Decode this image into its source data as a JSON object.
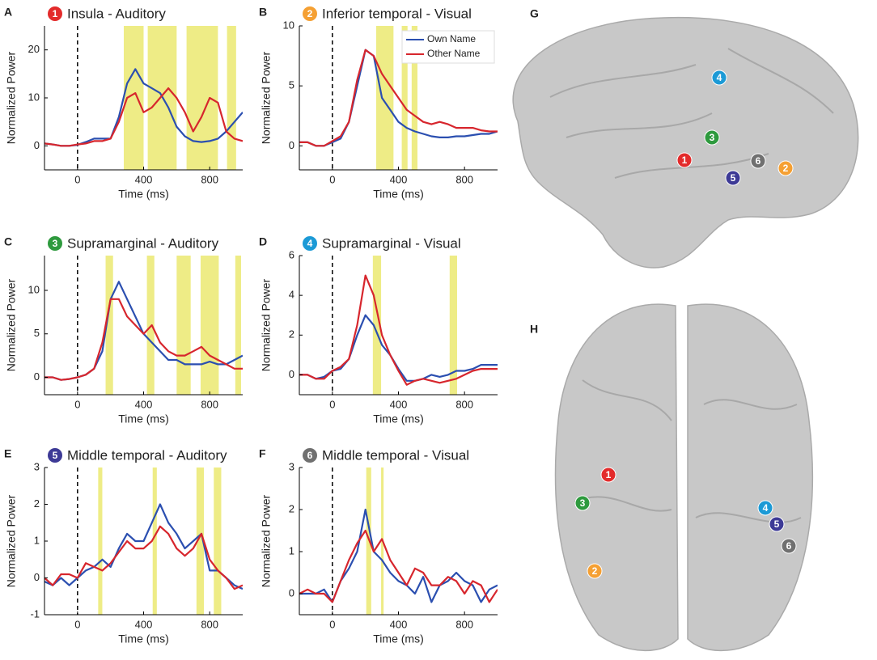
{
  "chart_data": [
    {
      "type": "line",
      "panel": "A",
      "badge": "1",
      "badge_color": "#e32b2b",
      "title": "Insula - Auditory",
      "xlabel": "Time (ms)",
      "ylabel": "Normalized Power",
      "x": [
        -200,
        -150,
        -100,
        -50,
        0,
        50,
        100,
        150,
        200,
        250,
        300,
        350,
        400,
        450,
        500,
        550,
        600,
        650,
        700,
        750,
        800,
        850,
        900,
        950,
        1000
      ],
      "xlim": [
        -200,
        1000
      ],
      "xticks": [
        0,
        400,
        800
      ],
      "ylim": [
        -5,
        25
      ],
      "yticks": [
        0,
        10,
        20
      ],
      "onset": 0,
      "highlights": [
        [
          280,
          400
        ],
        [
          425,
          600
        ],
        [
          660,
          850
        ],
        [
          905,
          960
        ]
      ],
      "highlight_color": "#eeec86",
      "series": [
        {
          "color": "#2b4fb0",
          "values": [
            0.5,
            0.3,
            0,
            0,
            0.2,
            0.8,
            1.5,
            1.5,
            1.5,
            6,
            13,
            16,
            13,
            12,
            11,
            8,
            4,
            2,
            1,
            0.8,
            1,
            1.5,
            3,
            5,
            7
          ]
        },
        {
          "color": "#d7262d",
          "values": [
            0.5,
            0.3,
            0,
            0,
            0.3,
            0.5,
            1,
            1,
            1.5,
            5,
            10,
            11,
            7,
            8,
            10,
            12,
            10,
            7,
            3,
            6,
            10,
            9,
            3,
            1.5,
            1
          ]
        }
      ]
    },
    {
      "type": "line",
      "panel": "B",
      "badge": "2",
      "badge_color": "#f5a033",
      "title": "Inferior temporal - Visual",
      "xlabel": "Time (ms)",
      "ylabel": "Normalized Power",
      "x": [
        -200,
        -150,
        -100,
        -50,
        0,
        50,
        100,
        150,
        200,
        250,
        300,
        350,
        400,
        450,
        500,
        550,
        600,
        650,
        700,
        750,
        800,
        850,
        900,
        950,
        1000
      ],
      "xlim": [
        -200,
        1000
      ],
      "xticks": [
        0,
        400,
        800
      ],
      "ylim": [
        -2,
        10
      ],
      "yticks": [
        0,
        5,
        10
      ],
      "onset": 0,
      "highlights": [
        [
          265,
          370
        ],
        [
          420,
          455
        ],
        [
          480,
          515
        ]
      ],
      "highlight_color": "#eeec86",
      "legend": "upper right",
      "series": [
        {
          "name": "Own Name",
          "color": "#2b4fb0",
          "values": [
            0.3,
            0.3,
            0,
            0,
            0.3,
            0.6,
            2,
            5,
            8,
            7.5,
            4,
            3,
            2,
            1.5,
            1.2,
            1,
            0.8,
            0.7,
            0.7,
            0.8,
            0.8,
            0.9,
            1,
            1,
            1.2
          ]
        },
        {
          "name": "Other Name",
          "color": "#d7262d",
          "values": [
            0.3,
            0.3,
            0,
            0,
            0.4,
            0.8,
            2,
            5.5,
            8,
            7.5,
            6,
            5,
            4,
            3,
            2.5,
            2,
            1.8,
            2,
            1.8,
            1.5,
            1.5,
            1.5,
            1.3,
            1.2,
            1.2
          ]
        }
      ]
    },
    {
      "type": "line",
      "panel": "C",
      "badge": "3",
      "badge_color": "#2e9a3e",
      "title": "Supramarginal - Auditory",
      "xlabel": "Time (ms)",
      "ylabel": "Normalized Power",
      "x": [
        -200,
        -150,
        -100,
        -50,
        0,
        50,
        100,
        150,
        200,
        250,
        300,
        350,
        400,
        450,
        500,
        550,
        600,
        650,
        700,
        750,
        800,
        850,
        900,
        950,
        1000
      ],
      "xlim": [
        -200,
        1000
      ],
      "xticks": [
        0,
        400,
        800
      ],
      "ylim": [
        -2,
        14
      ],
      "yticks": [
        0,
        5,
        10
      ],
      "onset": 0,
      "highlights": [
        [
          170,
          215
        ],
        [
          420,
          465
        ],
        [
          600,
          685
        ],
        [
          745,
          855
        ],
        [
          955,
          990
        ]
      ],
      "highlight_color": "#eeec86",
      "series": [
        {
          "color": "#2b4fb0",
          "values": [
            0,
            0,
            -0.3,
            -0.2,
            0,
            0.3,
            1,
            3,
            9,
            11,
            9,
            7,
            5,
            4,
            3,
            2,
            2,
            1.5,
            1.5,
            1.5,
            1.8,
            1.5,
            1.5,
            2,
            2.5
          ]
        },
        {
          "color": "#d7262d",
          "values": [
            0,
            0,
            -0.3,
            -0.2,
            0,
            0.3,
            1,
            4,
            9,
            9,
            7,
            6,
            5,
            6,
            4,
            3,
            2.5,
            2.5,
            3,
            3.5,
            2.5,
            2,
            1.5,
            1,
            1
          ]
        }
      ]
    },
    {
      "type": "line",
      "panel": "D",
      "badge": "4",
      "badge_color": "#1c9ad6",
      "title": "Supramarginal - Visual",
      "xlabel": "Time (ms)",
      "ylabel": "Normalized Power",
      "x": [
        -200,
        -150,
        -100,
        -50,
        0,
        50,
        100,
        150,
        200,
        250,
        300,
        350,
        400,
        450,
        500,
        550,
        600,
        650,
        700,
        750,
        800,
        850,
        900,
        950,
        1000
      ],
      "xlim": [
        -200,
        1000
      ],
      "xticks": [
        0,
        400,
        800
      ],
      "ylim": [
        -1,
        6
      ],
      "yticks": [
        0,
        2,
        4,
        6
      ],
      "onset": 0,
      "highlights": [
        [
          245,
          295
        ],
        [
          710,
          755
        ]
      ],
      "highlight_color": "#eeec86",
      "series": [
        {
          "color": "#2b4fb0",
          "values": [
            0,
            0,
            -0.2,
            -0.1,
            0.2,
            0.3,
            0.8,
            2,
            3,
            2.5,
            1.5,
            1,
            0.3,
            -0.3,
            -0.3,
            -0.2,
            0,
            -0.1,
            0,
            0.2,
            0.2,
            0.3,
            0.5,
            0.5,
            0.5
          ]
        },
        {
          "color": "#d7262d",
          "values": [
            0,
            0,
            -0.2,
            -0.2,
            0.2,
            0.4,
            0.8,
            2.5,
            5,
            4,
            2,
            1,
            0.2,
            -0.5,
            -0.3,
            -0.2,
            -0.3,
            -0.4,
            -0.3,
            -0.2,
            0,
            0.2,
            0.3,
            0.3,
            0.3
          ]
        }
      ]
    },
    {
      "type": "line",
      "panel": "E",
      "badge": "5",
      "badge_color": "#3d3a96",
      "title": "Middle temporal - Auditory",
      "xlabel": "Time (ms)",
      "ylabel": "Normalized Power",
      "x": [
        -200,
        -150,
        -100,
        -50,
        0,
        50,
        100,
        150,
        200,
        250,
        300,
        350,
        400,
        450,
        500,
        550,
        600,
        650,
        700,
        750,
        800,
        850,
        900,
        950,
        1000
      ],
      "xlim": [
        -200,
        1000
      ],
      "xticks": [
        0,
        400,
        800
      ],
      "ylim": [
        -1,
        3
      ],
      "yticks": [
        -1,
        0,
        1,
        2,
        3
      ],
      "onset": 0,
      "highlights": [
        [
          125,
          150
        ],
        [
          455,
          480
        ],
        [
          720,
          765
        ],
        [
          825,
          870
        ]
      ],
      "highlight_color": "#eeec86",
      "series": [
        {
          "color": "#2b4fb0",
          "values": [
            -0.1,
            -0.2,
            0,
            -0.2,
            0,
            0.2,
            0.3,
            0.5,
            0.3,
            0.8,
            1.2,
            1,
            1,
            1.5,
            2,
            1.5,
            1.2,
            0.8,
            1,
            1.2,
            0.2,
            0.2,
            0,
            -0.2,
            -0.3
          ]
        },
        {
          "color": "#d7262d",
          "values": [
            0,
            -0.2,
            0.1,
            0.1,
            0,
            0.4,
            0.3,
            0.2,
            0.4,
            0.7,
            1,
            0.8,
            0.8,
            1,
            1.4,
            1.2,
            0.8,
            0.6,
            0.8,
            1.2,
            0.5,
            0.2,
            0,
            -0.3,
            -0.2
          ]
        }
      ]
    },
    {
      "type": "line",
      "panel": "F",
      "badge": "6",
      "badge_color": "#707070",
      "title": "Middle temporal - Visual",
      "xlabel": "Time (ms)",
      "ylabel": "Normalized Power",
      "x": [
        -200,
        -150,
        -100,
        -50,
        0,
        50,
        100,
        150,
        200,
        250,
        300,
        350,
        400,
        450,
        500,
        550,
        600,
        650,
        700,
        750,
        800,
        850,
        900,
        950,
        1000
      ],
      "xlim": [
        -200,
        1000
      ],
      "xticks": [
        0,
        400,
        800
      ],
      "ylim": [
        -0.5,
        3
      ],
      "yticks": [
        0,
        1,
        2,
        3
      ],
      "onset": 0,
      "highlights": [
        [
          205,
          235
        ],
        [
          295,
          310
        ]
      ],
      "highlight_color": "#eeec86",
      "series": [
        {
          "color": "#2b4fb0",
          "values": [
            0,
            0,
            0,
            0.1,
            -0.2,
            0.3,
            0.6,
            1,
            2,
            1,
            0.8,
            0.5,
            0.3,
            0.2,
            0,
            0.4,
            -0.2,
            0.2,
            0.3,
            0.5,
            0.3,
            0.2,
            -0.2,
            0.1,
            0.2
          ]
        },
        {
          "color": "#d7262d",
          "values": [
            0,
            0.1,
            0,
            0,
            -0.2,
            0.3,
            0.8,
            1.2,
            1.5,
            1,
            1.3,
            0.8,
            0.5,
            0.2,
            0.6,
            0.5,
            0.2,
            0.2,
            0.4,
            0.3,
            0,
            0.3,
            0.2,
            -0.2,
            0.1
          ]
        }
      ]
    }
  ],
  "brain_panels": [
    {
      "label": "G",
      "markers": [
        {
          "text": "4",
          "color": "#1c9ad6"
        },
        {
          "text": "3",
          "color": "#2e9a3e"
        },
        {
          "text": "1",
          "color": "#e32b2b"
        },
        {
          "text": "6",
          "color": "#707070"
        },
        {
          "text": "5",
          "color": "#3d3a96"
        },
        {
          "text": "2",
          "color": "#f5a033"
        }
      ]
    },
    {
      "label": "H",
      "markers": [
        {
          "text": "1",
          "color": "#e32b2b"
        },
        {
          "text": "3",
          "color": "#2e9a3e"
        },
        {
          "text": "2",
          "color": "#f5a033"
        },
        {
          "text": "4",
          "color": "#1c9ad6"
        },
        {
          "text": "5",
          "color": "#3d3a96"
        },
        {
          "text": "6",
          "color": "#707070"
        }
      ]
    }
  ]
}
